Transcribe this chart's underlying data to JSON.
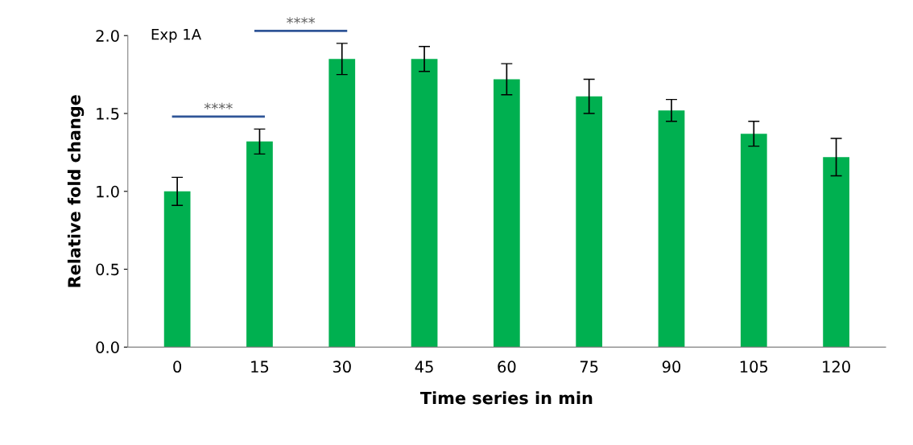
{
  "chart_data": {
    "type": "bar",
    "xlabel": "Time series in min",
    "ylabel": "Relative fold change",
    "categories": [
      "0",
      "15",
      "30",
      "45",
      "60",
      "75",
      "90",
      "105",
      "120"
    ],
    "series": [
      {
        "color": "#00b050",
        "values": [
          1.0,
          1.32,
          1.85,
          1.85,
          1.72,
          1.61,
          1.52,
          1.37,
          1.22
        ],
        "errors": [
          0.09,
          0.08,
          0.1,
          0.08,
          0.1,
          0.11,
          0.07,
          0.08,
          0.12
        ]
      }
    ],
    "ylim": [
      0,
      2.0
    ],
    "yticks": [
      {
        "value": 0,
        "label": "0.0"
      },
      {
        "value": 0.5,
        "label": "0.5"
      },
      {
        "value": 1.0,
        "label": "1.0"
      },
      {
        "value": 1.5,
        "label": "1.5"
      },
      {
        "value": 2.0,
        "label": "2.0"
      }
    ],
    "grid": false,
    "legend": false,
    "annotations": [
      "Exp 1A",
      "****",
      "****"
    ]
  }
}
